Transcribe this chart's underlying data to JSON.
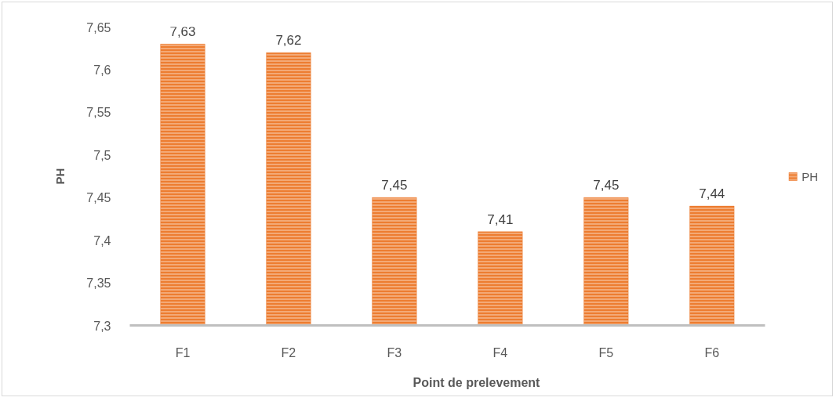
{
  "chart_data": {
    "type": "bar",
    "xlabel": "Point de prelevement",
    "ylabel": "PH",
    "categories": [
      "F1",
      "F2",
      "F3",
      "F4",
      "F5",
      "F6"
    ],
    "series": [
      {
        "name": "PH",
        "color": "#ed7d31",
        "values": [
          7.63,
          7.62,
          7.45,
          7.41,
          7.45,
          7.44
        ],
        "value_labels": [
          "7,63",
          "7,62",
          "7,45",
          "7,41",
          "7,45",
          "7,44"
        ]
      }
    ],
    "ylim": [
      7.3,
      7.65
    ],
    "yticks": [
      {
        "value": 7.3,
        "label": "7,3"
      },
      {
        "value": 7.35,
        "label": "7,35"
      },
      {
        "value": 7.4,
        "label": "7,4"
      },
      {
        "value": 7.45,
        "label": "7,45"
      },
      {
        "value": 7.5,
        "label": "7,5"
      },
      {
        "value": 7.55,
        "label": "7,55"
      },
      {
        "value": 7.6,
        "label": "7,6"
      },
      {
        "value": 7.65,
        "label": "7,65"
      }
    ],
    "legend": "right"
  }
}
